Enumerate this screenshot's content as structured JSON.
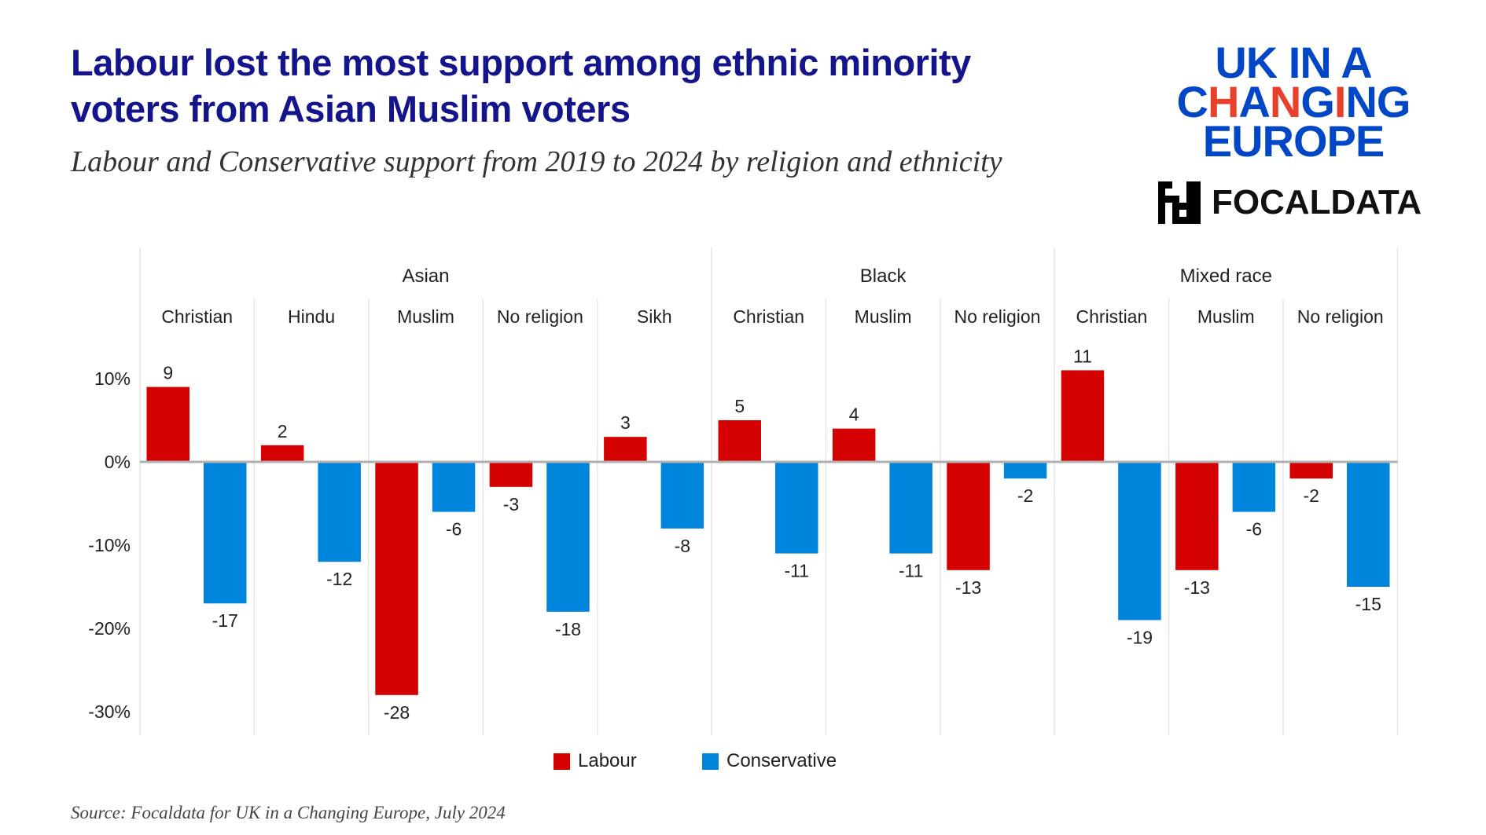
{
  "title": "Labour lost the most support among ethnic minority voters from Asian Muslim voters",
  "title_lines": [
    "Labour lost the most support among ethnic minority",
    "voters from Asian Muslim voters"
  ],
  "subtitle": "Labour and Conservative support from 2019 to 2024 by religion and ethnicity",
  "source": "Source: Focaldata for UK in a Changing Europe, July 2024",
  "logos": {
    "ukice": [
      "UK IN A",
      "CHANGING",
      "EUROPE"
    ],
    "focaldata": "FOCALDATA"
  },
  "colors": {
    "labour": "#d50000",
    "conservative": "#0085dc",
    "title": "#14148c"
  },
  "chart_data": {
    "type": "bar",
    "title": "",
    "xlabel": "",
    "ylabel": "",
    "ylim": [
      -33,
      15
    ],
    "yticks": [
      10,
      0,
      -10,
      -20,
      -30
    ],
    "ytick_labels": [
      "10%",
      "0%",
      "-10%",
      "-20%",
      "-30%"
    ],
    "legend_position": "bottom",
    "groups": [
      {
        "name": "Asian",
        "categories": [
          "Christian",
          "Hindu",
          "Muslim",
          "No religion",
          "Sikh"
        ]
      },
      {
        "name": "Black",
        "categories": [
          "Christian",
          "Muslim",
          "No religion"
        ]
      },
      {
        "name": "Mixed race",
        "categories": [
          "Christian",
          "Muslim",
          "No religion"
        ]
      }
    ],
    "series": [
      {
        "name": "Labour",
        "color": "#d50000",
        "values": [
          9,
          2,
          -28,
          -3,
          3,
          5,
          4,
          -13,
          11,
          -13,
          -2
        ]
      },
      {
        "name": "Conservative",
        "color": "#0085dc",
        "values": [
          -17,
          -12,
          -6,
          -18,
          -8,
          -11,
          -11,
          -2,
          -19,
          -6,
          -15
        ]
      }
    ]
  }
}
